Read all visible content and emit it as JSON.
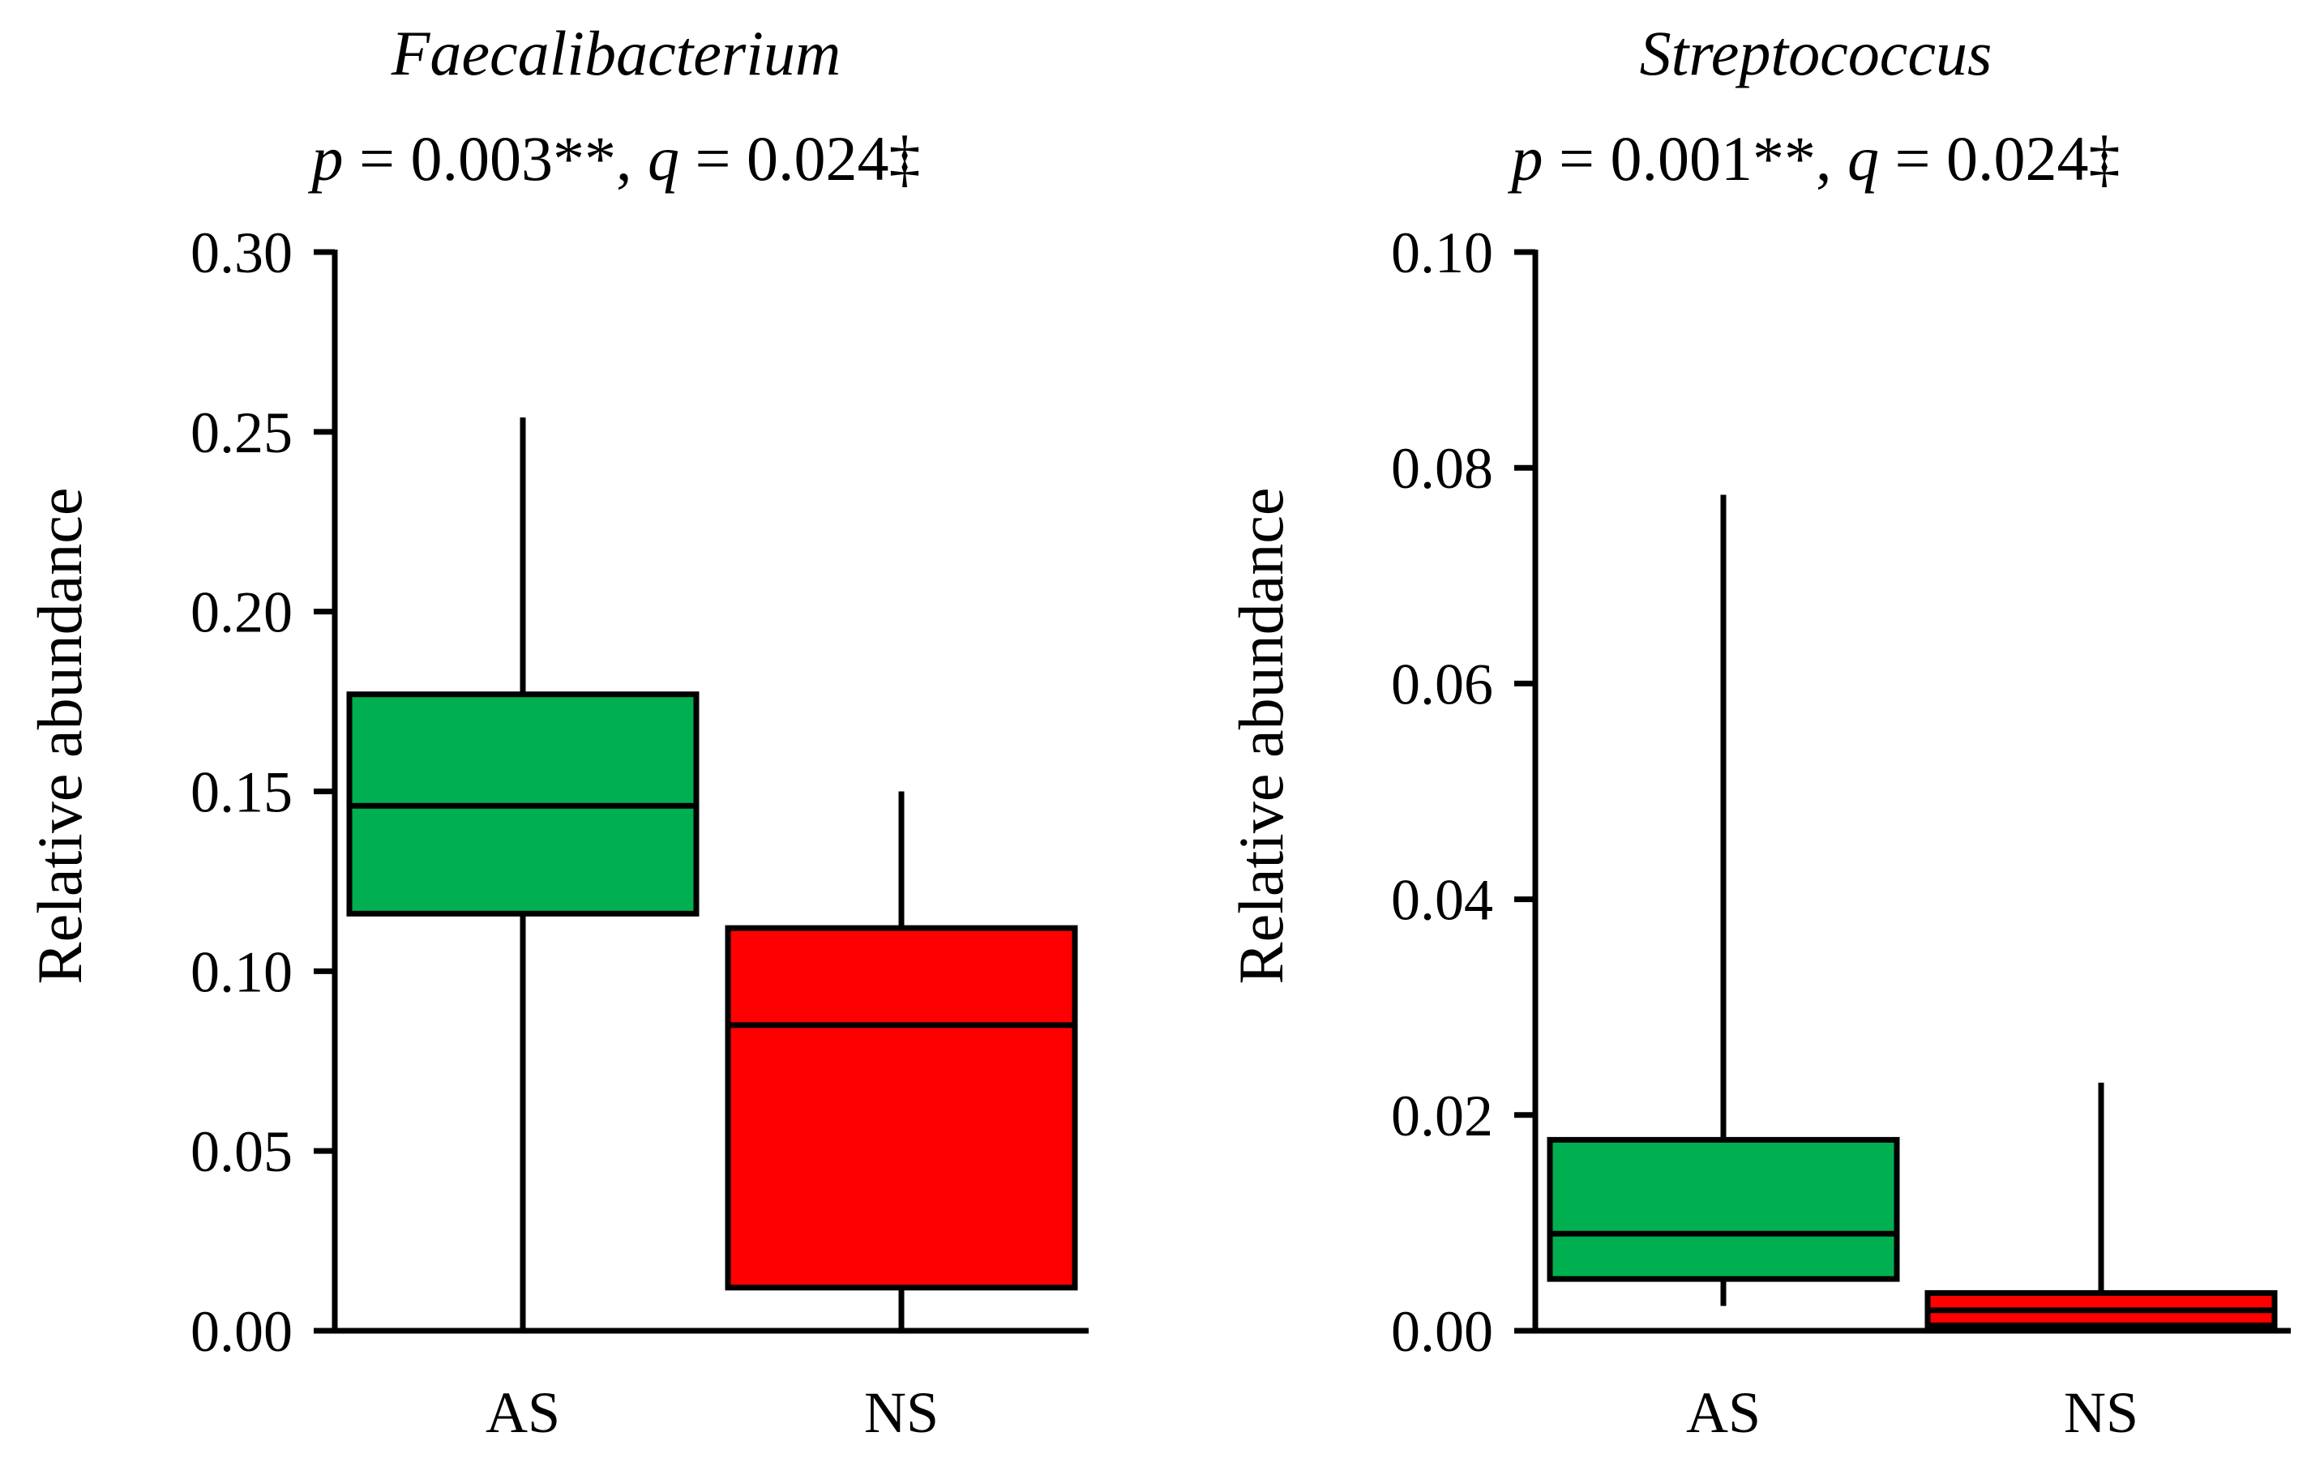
{
  "chart_data": [
    {
      "type": "boxplot",
      "title": "Faecalibacterium",
      "stats": {
        "p_label": "p",
        "p_text": " = 0.003**, ",
        "q_label": "q",
        "q_text": " = 0.024‡"
      },
      "xlabel": "",
      "ylabel": "Relative abundance",
      "ylim": [
        0,
        0.3
      ],
      "yticks": [
        0.0,
        0.05,
        0.1,
        0.15,
        0.2,
        0.25,
        0.3
      ],
      "ytick_labels": [
        "0.00",
        "0.05",
        "0.10",
        "0.15",
        "0.20",
        "0.25",
        "0.30"
      ],
      "categories": [
        "AS",
        "NS"
      ],
      "boxes": [
        {
          "name": "AS",
          "min": 0.0,
          "q1": 0.116,
          "median": 0.146,
          "q3": 0.177,
          "max": 0.254,
          "color": "#00B050"
        },
        {
          "name": "NS",
          "min": 0.0,
          "q1": 0.012,
          "median": 0.085,
          "q3": 0.112,
          "max": 0.15,
          "color": "#FF0000"
        }
      ]
    },
    {
      "type": "boxplot",
      "title": "Streptococcus",
      "stats": {
        "p_label": "p",
        "p_text": " = 0.001**, ",
        "q_label": "q",
        "q_text": " = 0.024‡"
      },
      "xlabel": "",
      "ylabel": "Relative abundance",
      "ylim": [
        0,
        0.1
      ],
      "yticks": [
        0.0,
        0.02,
        0.04,
        0.06,
        0.08,
        0.1
      ],
      "ytick_labels": [
        "0.00",
        "0.02",
        "0.04",
        "0.06",
        "0.08",
        "0.10"
      ],
      "categories": [
        "AS",
        "NS"
      ],
      "boxes": [
        {
          "name": "AS",
          "min": 0.0023,
          "q1": 0.0048,
          "median": 0.009,
          "q3": 0.0177,
          "max": 0.0775,
          "color": "#00B050"
        },
        {
          "name": "NS",
          "min": 0.0,
          "q1": 0.0005,
          "median": 0.0019,
          "q3": 0.0035,
          "max": 0.023,
          "color": "#FF0000"
        }
      ]
    }
  ]
}
